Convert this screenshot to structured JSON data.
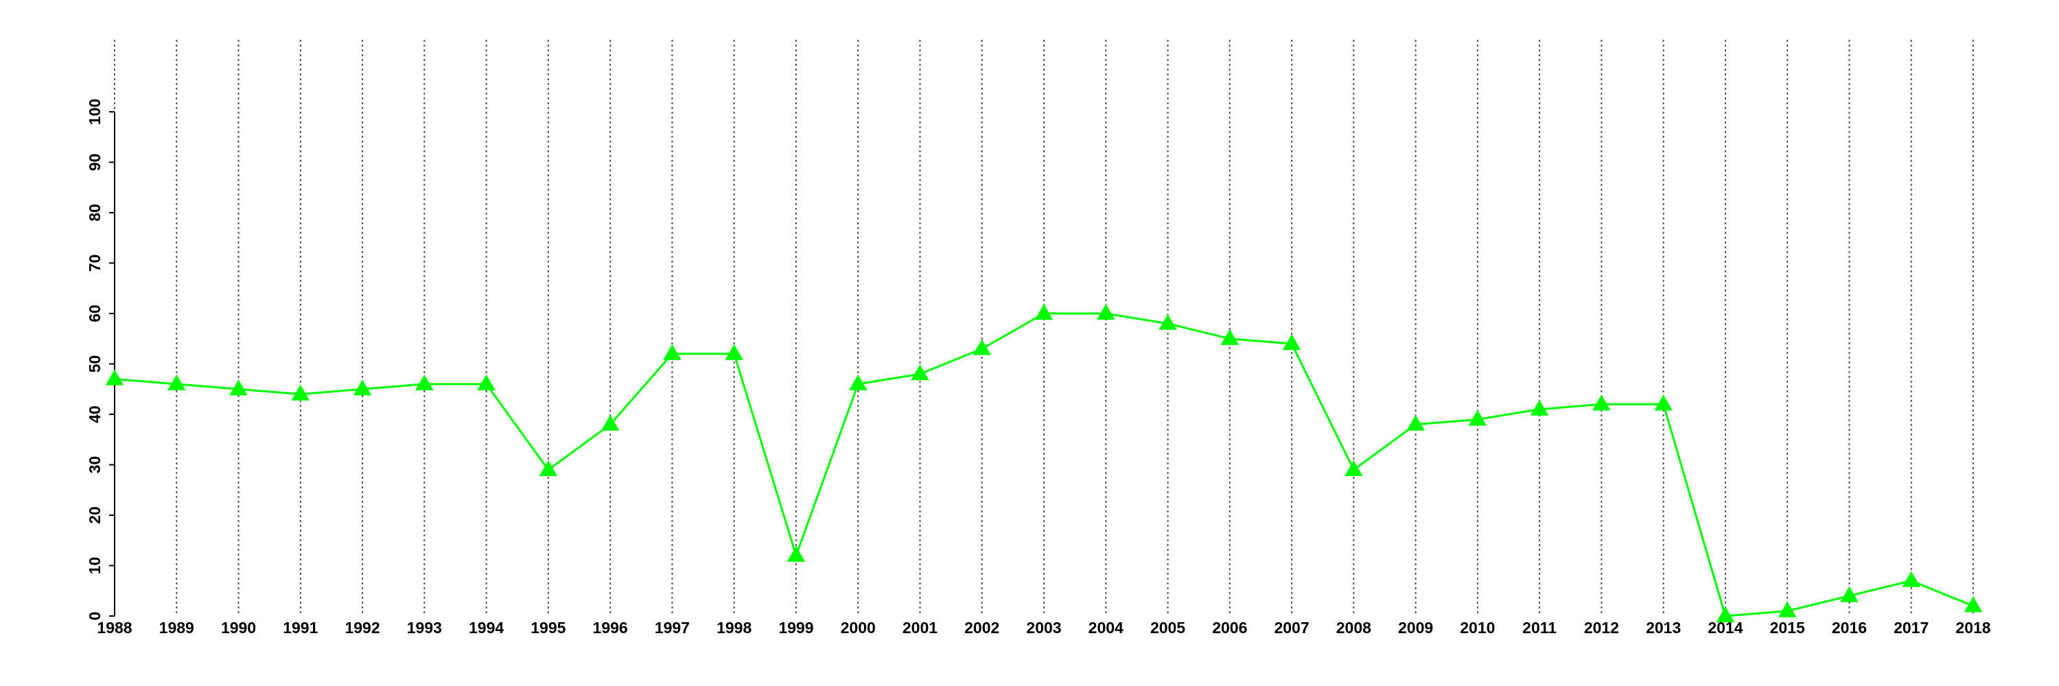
{
  "chart_data": {
    "type": "line",
    "x": [
      1988,
      1989,
      1990,
      1991,
      1992,
      1993,
      1994,
      1995,
      1996,
      1997,
      1998,
      1999,
      2000,
      2001,
      2002,
      2003,
      2004,
      2005,
      2006,
      2007,
      2008,
      2009,
      2010,
      2011,
      2012,
      2013,
      2014,
      2015,
      2016,
      2017,
      2018
    ],
    "series": [
      {
        "color": "#00ff00",
        "marker": "triangle",
        "values": [
          47,
          46,
          45,
          44,
          45,
          46,
          46,
          29,
          38,
          52,
          52,
          12,
          46,
          48,
          53,
          60,
          60,
          58,
          55,
          54,
          29,
          38,
          39,
          41,
          42,
          42,
          0,
          1,
          4,
          7,
          2
        ]
      }
    ],
    "xlim": [
      1988,
      2018
    ],
    "xticks": [
      1988,
      1989,
      1990,
      1991,
      1992,
      1993,
      1994,
      1995,
      1996,
      1997,
      1998,
      1999,
      2000,
      2001,
      2002,
      2003,
      2004,
      2005,
      2006,
      2007,
      2008,
      2009,
      2010,
      2011,
      2012,
      2013,
      2014,
      2015,
      2016,
      2017,
      2018
    ],
    "ylim": [
      0,
      100
    ],
    "yticks": [
      0,
      10,
      20,
      30,
      40,
      50,
      60,
      70,
      80,
      90,
      100
    ],
    "grid": "x"
  }
}
